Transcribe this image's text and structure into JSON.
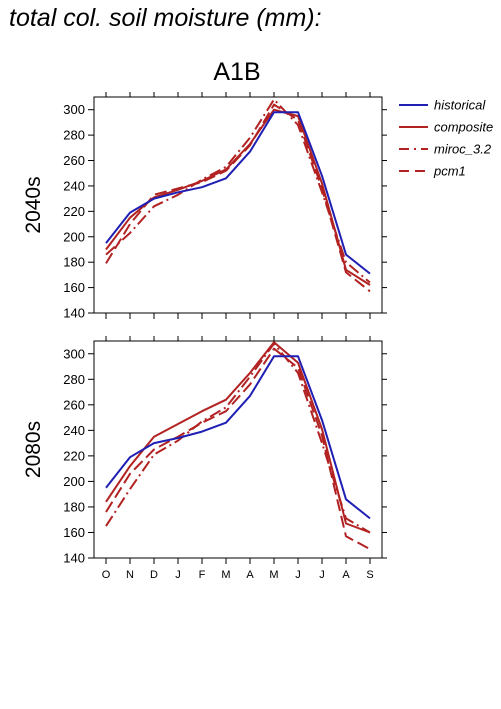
{
  "page": {
    "title": "total col. soil moisture (mm):"
  },
  "chart_data": {
    "type": "line",
    "scenario": "A1B",
    "categories": [
      "O",
      "N",
      "D",
      "J",
      "F",
      "M",
      "A",
      "M",
      "J",
      "J",
      "A",
      "S"
    ],
    "ylim": [
      140,
      310
    ],
    "yticks": [
      140,
      160,
      180,
      200,
      220,
      240,
      260,
      280,
      300
    ],
    "grid": false,
    "legend_placement": "right",
    "legend": [
      {
        "name": "historical",
        "color": "#1f1fb4",
        "dash": "solid"
      },
      {
        "name": "composite",
        "color": "#b22222",
        "dash": "solid"
      },
      {
        "name": "miroc_3.2",
        "color": "#b22222",
        "dash": "dashdot"
      },
      {
        "name": "pcm1",
        "color": "#b22222",
        "dash": "dashed"
      }
    ],
    "panels": [
      {
        "label": "2040s",
        "series": [
          {
            "name": "historical",
            "values": [
              195,
              219,
              230,
              235,
              239,
              246,
              267,
              298,
              298,
              248,
              186,
              171
            ]
          },
          {
            "name": "composite",
            "values": [
              190,
              215,
              231,
              237,
              244,
              253,
              273,
              300,
              295,
              242,
              174,
              162
            ]
          },
          {
            "name": "miroc_3.2",
            "values": [
              186,
              203,
              224,
              233,
              245,
              255,
              278,
              308,
              288,
              235,
              180,
              164
            ]
          },
          {
            "name": "pcm1",
            "values": [
              179,
              210,
              233,
              238,
              243,
              252,
              272,
              304,
              292,
              238,
              172,
              157
            ]
          }
        ]
      },
      {
        "label": "2080s",
        "series": [
          {
            "name": "historical",
            "values": [
              195,
              219,
              230,
              234,
              239,
              246,
              267,
              298,
              298,
              248,
              186,
              171
            ]
          },
          {
            "name": "composite",
            "values": [
              184,
              212,
              235,
              245,
              255,
              264,
              285,
              309,
              293,
              241,
              167,
              160
            ]
          },
          {
            "name": "miroc_3.2",
            "values": [
              165,
              194,
              221,
              232,
              247,
              258,
              282,
              308,
              285,
              230,
              171,
              160
            ]
          },
          {
            "name": "pcm1",
            "values": [
              176,
              206,
              225,
              235,
              246,
              255,
              276,
              304,
              289,
              236,
              157,
              147
            ]
          }
        ]
      }
    ]
  }
}
